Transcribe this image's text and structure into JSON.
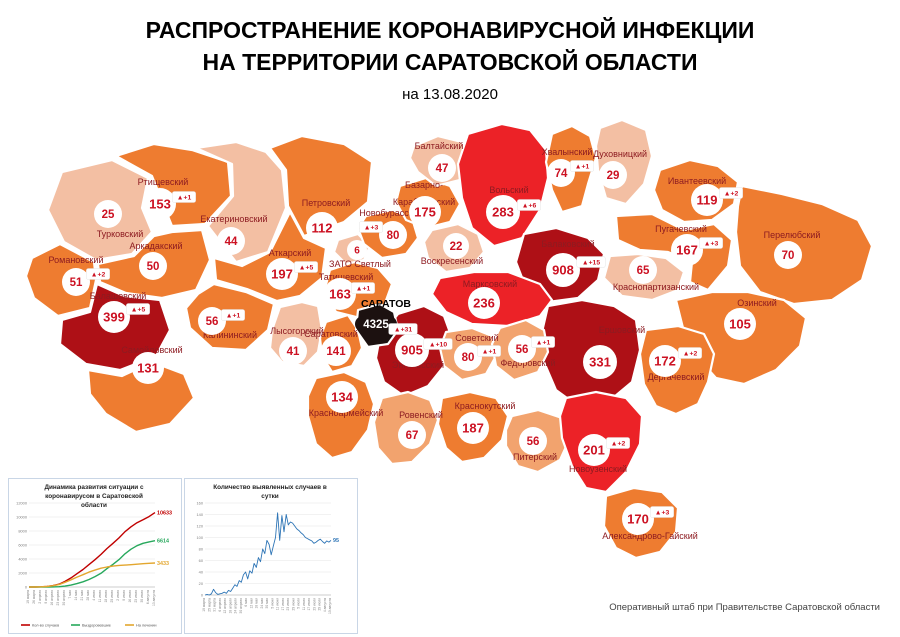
{
  "header": {
    "title_line1": "РАСПРОСТРАНЕНИЕ КОРОНАВИРУСНОЙ ИНФЕКЦИИ",
    "title_line2": "НА ТЕРРИТОРИИ САРАТОВСКОЙ ОБЛАСТИ",
    "date": "на 13.08.2020"
  },
  "footer": {
    "credit": "Оперативный штаб при Правительстве Саратовской области"
  },
  "palette": {
    "dark_red": "#ae1016",
    "red": "#ec2227",
    "orange": "#ee7c30",
    "salmon": "#f2a36e",
    "pink": "#f3bfa3",
    "city": "#1c1110",
    "label": "#8d1b21",
    "value": "#cc1122"
  },
  "map": {
    "districts": [
      {
        "id": "turkovsky",
        "name": "Турковский",
        "value": "25",
        "delta": null,
        "color": "pink"
      },
      {
        "id": "rtishchevsky",
        "name": "Ртищевский",
        "value": "153",
        "delta": "+1",
        "color": "orange"
      },
      {
        "id": "ekaterinovsky",
        "name": "Екатериновский",
        "value": "44",
        "delta": null,
        "color": "pink"
      },
      {
        "id": "petrovsky",
        "name": "Петровский",
        "value": "112",
        "delta": null,
        "color": "orange"
      },
      {
        "id": "arkadaksky",
        "name": "Аркадакский",
        "value": "50",
        "delta": null,
        "color": "orange"
      },
      {
        "id": "romanovsky",
        "name": "Романовский",
        "value": "51",
        "delta": "+2",
        "color": "orange"
      },
      {
        "id": "balashovsky",
        "name": "Балашовский",
        "value": "399",
        "delta": "+5",
        "color": "dark_red"
      },
      {
        "id": "samoylovsky",
        "name": "Самойловский",
        "value": "131",
        "delta": null,
        "color": "orange"
      },
      {
        "id": "atkarsky",
        "name": "Аткарский",
        "value": "197",
        "delta": "+5",
        "color": "orange"
      },
      {
        "id": "kalininsky",
        "name": "Калининский",
        "value": "56",
        "delta": "+1",
        "color": "orange"
      },
      {
        "id": "lysogorsky",
        "name": "Лысогорский",
        "value": "41",
        "delta": null,
        "color": "pink"
      },
      {
        "id": "tatishchevsky",
        "name": "Татищевский",
        "value": "163",
        "delta": "+1",
        "color": "orange"
      },
      {
        "id": "zato_svetly",
        "name": "ЗАТО Светлый",
        "value": "6",
        "delta": null,
        "color": "pink"
      },
      {
        "id": "novoburassky",
        "name": "Новобурасский",
        "value": "80",
        "delta": "+3",
        "color": "orange"
      },
      {
        "id": "bazarno_karabulaksky",
        "name": "Базарно-Карабулакский",
        "value": "175",
        "delta": null,
        "color": "orange"
      },
      {
        "id": "baltaysky",
        "name": "Балтайский",
        "value": "47",
        "delta": null,
        "color": "pink"
      },
      {
        "id": "volsky",
        "name": "Вольский",
        "value": "283",
        "delta": "+6",
        "color": "red"
      },
      {
        "id": "khvalynsky",
        "name": "Хвалынский",
        "value": "74",
        "delta": "+1",
        "color": "orange"
      },
      {
        "id": "dukhovnitsky",
        "name": "Духовницкий",
        "value": "29",
        "delta": null,
        "color": "pink"
      },
      {
        "id": "ivanteevsky",
        "name": "Ивантеевский",
        "value": "119",
        "delta": "+2",
        "color": "orange"
      },
      {
        "id": "pugachevsky",
        "name": "Пугачевский",
        "value": "167",
        "delta": "+3",
        "color": "orange"
      },
      {
        "id": "perelyubsky",
        "name": "Перелюбский",
        "value": "70",
        "delta": null,
        "color": "orange"
      },
      {
        "id": "krasnopartizansky",
        "name": "Краснопартизанский",
        "value": "65",
        "delta": null,
        "color": "pink"
      },
      {
        "id": "balakovsky",
        "name": "Балаковский",
        "value": "908",
        "delta": "+15",
        "color": "dark_red"
      },
      {
        "id": "voskresensky",
        "name": "Воскресенский",
        "value": "22",
        "delta": null,
        "color": "pink"
      },
      {
        "id": "marksovsky",
        "name": "Марксовский",
        "value": "236",
        "delta": null,
        "color": "red"
      },
      {
        "id": "ershovsky",
        "name": "Ершовский",
        "value": "331",
        "delta": null,
        "color": "dark_red"
      },
      {
        "id": "ozinsky",
        "name": "Озинский",
        "value": "105",
        "delta": null,
        "color": "orange"
      },
      {
        "id": "dergachevsky",
        "name": "Дергачевский",
        "value": "172",
        "delta": "+2",
        "color": "orange"
      },
      {
        "id": "saratovsky",
        "name": "Саратовский",
        "value": "141",
        "delta": null,
        "color": "orange"
      },
      {
        "id": "engelssky",
        "name": "Энгельсский",
        "value": "905",
        "delta": "+10",
        "color": "dark_red"
      },
      {
        "id": "sovetsky",
        "name": "Советский",
        "value": "80",
        "delta": "+1",
        "color": "salmon"
      },
      {
        "id": "fedorovsky",
        "name": "Федоровский",
        "value": "56",
        "delta": "+1",
        "color": "salmon"
      },
      {
        "id": "krasnoarmeysky",
        "name": "Красноармейский",
        "value": "134",
        "delta": null,
        "color": "orange"
      },
      {
        "id": "rovensky",
        "name": "Ровенский",
        "value": "67",
        "delta": null,
        "color": "salmon"
      },
      {
        "id": "krasnokutsky",
        "name": "Краснокутский",
        "value": "187",
        "delta": null,
        "color": "orange"
      },
      {
        "id": "pitersky",
        "name": "Питерский",
        "value": "56",
        "delta": null,
        "color": "salmon"
      },
      {
        "id": "novouzensky",
        "name": "Новоузенский",
        "value": "201",
        "delta": "+2",
        "color": "red"
      },
      {
        "id": "aleksandrovo_gaysky",
        "name": "Александрово-Гайский",
        "value": "170",
        "delta": "+3",
        "color": "orange"
      },
      {
        "id": "saratov_city",
        "name": "САРАТОВ",
        "value": "4325",
        "delta": "+31",
        "color": "city"
      }
    ]
  },
  "chart_data": [
    {
      "type": "line",
      "title": "Динамика развития ситуации с коронавирусом в Саратовской области",
      "x_labels": [
        "19 марта",
        "26 марта",
        "2 апреля",
        "9 апреля",
        "16 апреля",
        "23 апреля",
        "30 апреля",
        "7 мая",
        "14 мая",
        "21 мая",
        "28 мая",
        "4 июня",
        "11 июня",
        "18 июня",
        "25 июня",
        "2 июля",
        "9 июля",
        "16 июля",
        "23 июля",
        "30 июля",
        "6 августа",
        "13 августа"
      ],
      "ylim": [
        0,
        12000
      ],
      "ytick_step": 2000,
      "grid": true,
      "legend_position": "bottom",
      "series": [
        {
          "name": "Кол-во случаев",
          "color": "#c00000",
          "end_label": "10633",
          "values": [
            0,
            5,
            30,
            80,
            200,
            395,
            800,
            1300,
            1900,
            2500,
            3200,
            3900,
            4650,
            5500,
            6250,
            7020,
            7900,
            8600,
            9180,
            9600,
            10050,
            10633
          ]
        },
        {
          "name": "Выздоровевшие",
          "color": "#27a85c",
          "end_label": "6614",
          "values": [
            0,
            0,
            1,
            5,
            20,
            50,
            130,
            270,
            480,
            740,
            1070,
            1480,
            1950,
            2630,
            3250,
            3920,
            4750,
            5400,
            5900,
            6250,
            6450,
            6614
          ]
        },
        {
          "name": "На лечении",
          "color": "#e3a72f",
          "end_label": "3433",
          "values": [
            0,
            5,
            29,
            75,
            180,
            345,
            670,
            1030,
            1420,
            1760,
            2130,
            2420,
            2680,
            2850,
            2980,
            3080,
            3130,
            3180,
            3260,
            3330,
            3390,
            3433
          ]
        }
      ]
    },
    {
      "type": "line",
      "title": "Количество выявленных случаев в сутки",
      "x_labels": [
        "19 марта",
        "25 марта",
        "31 марта",
        "6 апреля",
        "12 апреля",
        "18 апреля",
        "24 апреля",
        "30 апреля",
        "6 мая",
        "12 мая",
        "18 мая",
        "24 мая",
        "30 мая",
        "5 июня",
        "11 июня",
        "17 июня",
        "23 июня",
        "29 июня",
        "5 июля",
        "11 июля",
        "17 июля",
        "23 июля",
        "29 июля",
        "4 августа",
        "10 августа"
      ],
      "ylim": [
        0,
        160
      ],
      "ytick_step": 20,
      "grid": true,
      "legend_position": "none",
      "series": [
        {
          "color": "#2e75b6",
          "end_label": "95",
          "values": [
            0,
            1,
            0,
            2,
            10,
            4,
            1,
            2,
            3,
            5,
            3,
            8,
            6,
            12,
            18,
            15,
            25,
            22,
            35,
            40,
            28,
            42,
            38,
            55,
            48,
            65,
            58,
            80,
            72,
            95,
            88,
            70,
            85,
            100,
            143,
            95,
            138,
            110,
            140,
            122,
            127,
            125,
            120,
            115,
            112,
            108,
            105,
            100,
            98,
            96,
            94,
            90,
            92,
            95,
            97,
            93,
            90,
            94,
            92,
            95
          ]
        }
      ]
    }
  ]
}
